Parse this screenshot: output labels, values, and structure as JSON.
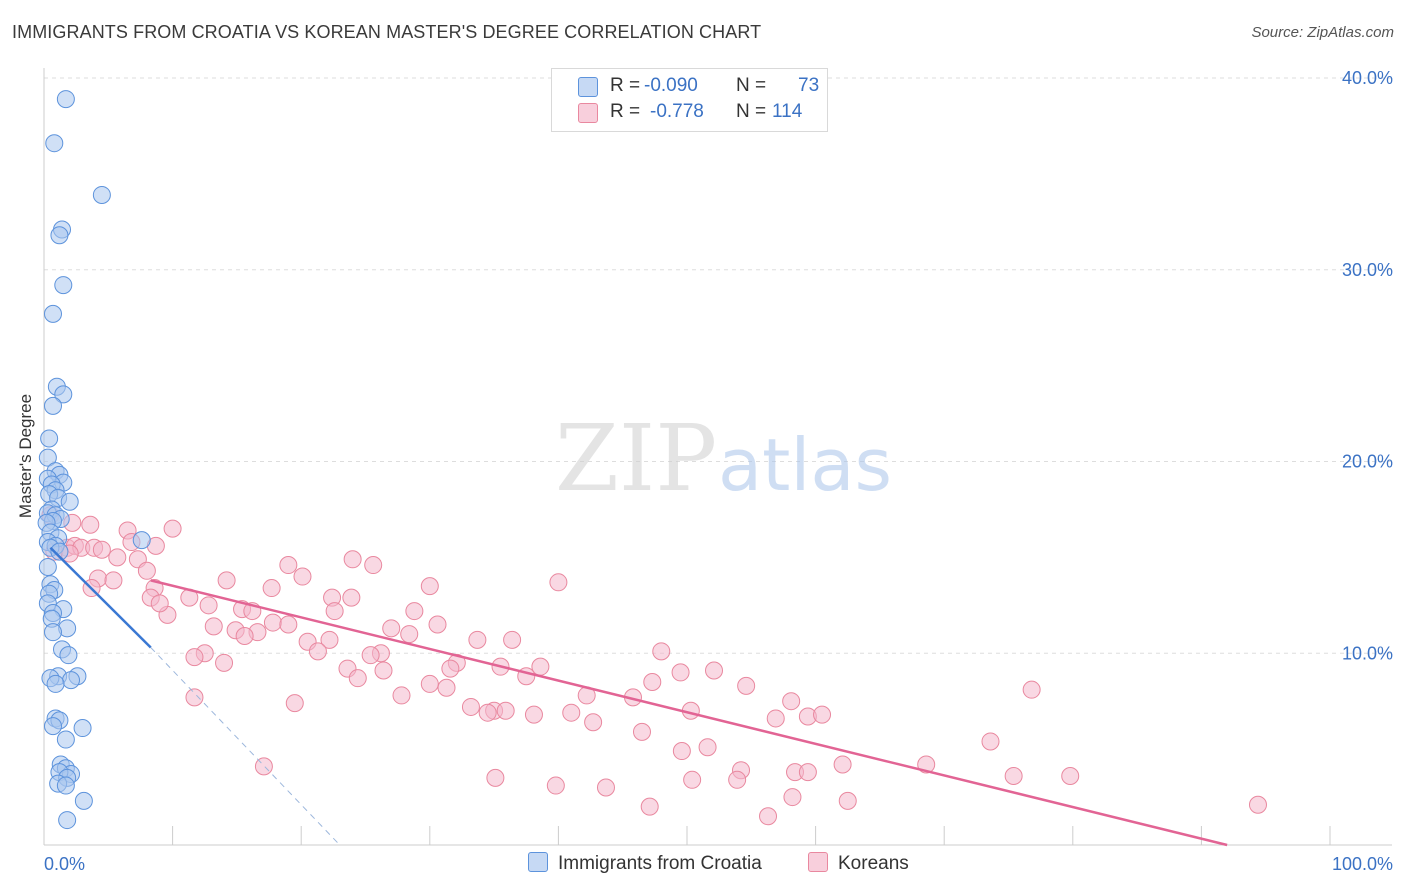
{
  "title": "IMMIGRANTS FROM CROATIA VS KOREAN MASTER'S DEGREE CORRELATION CHART",
  "source": "Source: ZipAtlas.com",
  "watermark": {
    "zip": "ZIP",
    "atlas": "atlas"
  },
  "legend": {
    "croatia": {
      "r_label": "R =",
      "r_value": "-0.090",
      "n_label": "N =",
      "n_value": "73"
    },
    "koreans": {
      "r_label": "R =",
      "r_value": "-0.778",
      "n_label": "N =",
      "n_value": "114"
    }
  },
  "colors": {
    "croatia_fill": "#a9c7ef",
    "croatia_stroke": "#5d93dc",
    "croatia_line": "#3a78d3",
    "koreans_fill": "#f4b8cc",
    "koreans_stroke": "#e9889f",
    "koreans_line": "#e26494",
    "tick_label": "#3b72c4",
    "grid": "#dddddd"
  },
  "chart_data": {
    "type": "scatter",
    "title": "IMMIGRANTS FROM CROATIA VS KOREAN MASTER'S DEGREE CORRELATION CHART",
    "xlabel": "",
    "ylabel": "Master's Degree",
    "xlim": [
      0,
      100
    ],
    "ylim": [
      0,
      40
    ],
    "x_tick_labels": [
      "0.0%",
      "100.0%"
    ],
    "y_ticks": [
      10,
      20,
      30,
      40
    ],
    "y_tick_labels": [
      "10.0%",
      "20.0%",
      "30.0%",
      "40.0%"
    ],
    "grid": true,
    "legend_position": "bottom",
    "series": [
      {
        "name": "Immigrants from Croatia",
        "R": -0.09,
        "N": 73,
        "points": [
          [
            1.7,
            38.9
          ],
          [
            0.8,
            36.6
          ],
          [
            4.5,
            33.9
          ],
          [
            1.4,
            32.1
          ],
          [
            1.2,
            31.8
          ],
          [
            1.5,
            29.2
          ],
          [
            0.7,
            27.7
          ],
          [
            1.0,
            23.9
          ],
          [
            1.5,
            23.5
          ],
          [
            0.7,
            22.9
          ],
          [
            0.4,
            21.2
          ],
          [
            0.3,
            20.2
          ],
          [
            0.9,
            19.5
          ],
          [
            1.2,
            19.3
          ],
          [
            0.3,
            19.1
          ],
          [
            1.5,
            18.9
          ],
          [
            0.6,
            18.8
          ],
          [
            0.9,
            18.5
          ],
          [
            0.4,
            18.3
          ],
          [
            1.1,
            18.1
          ],
          [
            2.0,
            17.9
          ],
          [
            0.6,
            17.5
          ],
          [
            0.3,
            17.3
          ],
          [
            0.9,
            17.2
          ],
          [
            1.3,
            17.0
          ],
          [
            0.7,
            16.9
          ],
          [
            0.2,
            16.8
          ],
          [
            0.5,
            16.3
          ],
          [
            1.1,
            16.0
          ],
          [
            7.6,
            15.9
          ],
          [
            0.3,
            15.8
          ],
          [
            0.9,
            15.6
          ],
          [
            0.5,
            15.5
          ],
          [
            1.2,
            15.3
          ],
          [
            0.3,
            14.5
          ],
          [
            0.5,
            13.6
          ],
          [
            0.8,
            13.3
          ],
          [
            0.4,
            13.1
          ],
          [
            0.3,
            12.6
          ],
          [
            1.5,
            12.3
          ],
          [
            0.7,
            12.1
          ],
          [
            0.6,
            11.8
          ],
          [
            1.8,
            11.3
          ],
          [
            0.7,
            11.1
          ],
          [
            1.4,
            10.2
          ],
          [
            1.9,
            9.9
          ],
          [
            1.1,
            8.8
          ],
          [
            2.6,
            8.8
          ],
          [
            0.5,
            8.7
          ],
          [
            2.1,
            8.6
          ],
          [
            0.9,
            8.4
          ],
          [
            0.9,
            6.6
          ],
          [
            1.2,
            6.5
          ],
          [
            0.7,
            6.2
          ],
          [
            3.0,
            6.1
          ],
          [
            1.7,
            5.5
          ],
          [
            1.3,
            4.2
          ],
          [
            1.7,
            4.0
          ],
          [
            2.1,
            3.7
          ],
          [
            1.2,
            3.8
          ],
          [
            1.8,
            3.5
          ],
          [
            1.1,
            3.2
          ],
          [
            1.7,
            3.1
          ],
          [
            3.1,
            2.3
          ],
          [
            1.8,
            1.3
          ]
        ],
        "trend": {
          "x_solid": [
            0.5,
            8.3
          ],
          "y_solid": [
            15.5,
            10.3
          ],
          "x_dashed": [
            8.3,
            23.0
          ],
          "y_dashed": [
            10.3,
            0.0
          ]
        }
      },
      {
        "name": "Koreans",
        "R": -0.778,
        "N": 114,
        "points": [
          [
            0.5,
            17.2
          ],
          [
            2.2,
            16.8
          ],
          [
            3.6,
            16.7
          ],
          [
            6.5,
            16.4
          ],
          [
            10.0,
            16.5
          ],
          [
            6.8,
            15.8
          ],
          [
            1.8,
            15.5
          ],
          [
            2.4,
            15.6
          ],
          [
            2.9,
            15.5
          ],
          [
            3.9,
            15.5
          ],
          [
            4.5,
            15.4
          ],
          [
            8.7,
            15.6
          ],
          [
            0.8,
            15.3
          ],
          [
            2.0,
            15.2
          ],
          [
            24.0,
            14.9
          ],
          [
            25.6,
            14.6
          ],
          [
            5.7,
            15.0
          ],
          [
            7.3,
            14.9
          ],
          [
            19.0,
            14.6
          ],
          [
            4.2,
            13.9
          ],
          [
            5.4,
            13.8
          ],
          [
            14.2,
            13.8
          ],
          [
            20.1,
            14.0
          ],
          [
            8.0,
            14.3
          ],
          [
            8.6,
            13.4
          ],
          [
            17.7,
            13.4
          ],
          [
            30.0,
            13.5
          ],
          [
            40.0,
            13.7
          ],
          [
            3.7,
            13.4
          ],
          [
            8.3,
            12.9
          ],
          [
            11.3,
            12.9
          ],
          [
            23.9,
            12.9
          ],
          [
            22.4,
            12.9
          ],
          [
            12.8,
            12.5
          ],
          [
            15.4,
            12.3
          ],
          [
            16.2,
            12.2
          ],
          [
            9.6,
            12.0
          ],
          [
            22.6,
            12.2
          ],
          [
            9.0,
            12.6
          ],
          [
            28.8,
            12.2
          ],
          [
            17.8,
            11.6
          ],
          [
            19.0,
            11.5
          ],
          [
            30.6,
            11.5
          ],
          [
            13.2,
            11.4
          ],
          [
            14.9,
            11.2
          ],
          [
            16.6,
            11.1
          ],
          [
            27.0,
            11.3
          ],
          [
            28.4,
            11.0
          ],
          [
            15.6,
            10.9
          ],
          [
            22.2,
            10.7
          ],
          [
            33.7,
            10.7
          ],
          [
            36.4,
            10.7
          ],
          [
            20.5,
            10.6
          ],
          [
            26.2,
            10.0
          ],
          [
            12.5,
            10.0
          ],
          [
            21.3,
            10.1
          ],
          [
            25.4,
            9.9
          ],
          [
            32.1,
            9.5
          ],
          [
            31.6,
            9.2
          ],
          [
            38.6,
            9.3
          ],
          [
            35.5,
            9.3
          ],
          [
            23.6,
            9.2
          ],
          [
            26.4,
            9.1
          ],
          [
            48.0,
            10.1
          ],
          [
            52.1,
            9.1
          ],
          [
            49.5,
            9.0
          ],
          [
            14.0,
            9.5
          ],
          [
            11.7,
            9.8
          ],
          [
            24.4,
            8.7
          ],
          [
            37.5,
            8.8
          ],
          [
            47.3,
            8.5
          ],
          [
            54.6,
            8.3
          ],
          [
            30.0,
            8.4
          ],
          [
            31.3,
            8.2
          ],
          [
            27.8,
            7.8
          ],
          [
            42.2,
            7.8
          ],
          [
            45.8,
            7.7
          ],
          [
            58.1,
            7.5
          ],
          [
            76.8,
            8.1
          ],
          [
            11.7,
            7.7
          ],
          [
            19.5,
            7.4
          ],
          [
            33.2,
            7.2
          ],
          [
            35.0,
            7.0
          ],
          [
            35.9,
            7.0
          ],
          [
            34.5,
            6.9
          ],
          [
            38.1,
            6.8
          ],
          [
            41.0,
            6.9
          ],
          [
            50.3,
            7.0
          ],
          [
            59.4,
            6.7
          ],
          [
            60.5,
            6.8
          ],
          [
            56.9,
            6.6
          ],
          [
            42.7,
            6.4
          ],
          [
            46.5,
            5.9
          ],
          [
            73.6,
            5.4
          ],
          [
            51.6,
            5.1
          ],
          [
            49.6,
            4.9
          ],
          [
            62.1,
            4.2
          ],
          [
            68.6,
            4.2
          ],
          [
            17.1,
            4.1
          ],
          [
            54.2,
            3.9
          ],
          [
            58.4,
            3.8
          ],
          [
            59.4,
            3.8
          ],
          [
            35.1,
            3.5
          ],
          [
            50.4,
            3.4
          ],
          [
            53.9,
            3.4
          ],
          [
            75.4,
            3.6
          ],
          [
            79.8,
            3.6
          ],
          [
            39.8,
            3.1
          ],
          [
            43.7,
            3.0
          ],
          [
            58.2,
            2.5
          ],
          [
            62.5,
            2.3
          ],
          [
            47.1,
            2.0
          ],
          [
            94.4,
            2.1
          ],
          [
            56.3,
            1.5
          ]
        ],
        "trend": {
          "x": [
            8.3,
            92.0
          ],
          "y": [
            13.8,
            0.0
          ]
        }
      }
    ]
  },
  "bottom_legend": {
    "croatia": "Immigrants from Croatia",
    "koreans": "Koreans"
  }
}
